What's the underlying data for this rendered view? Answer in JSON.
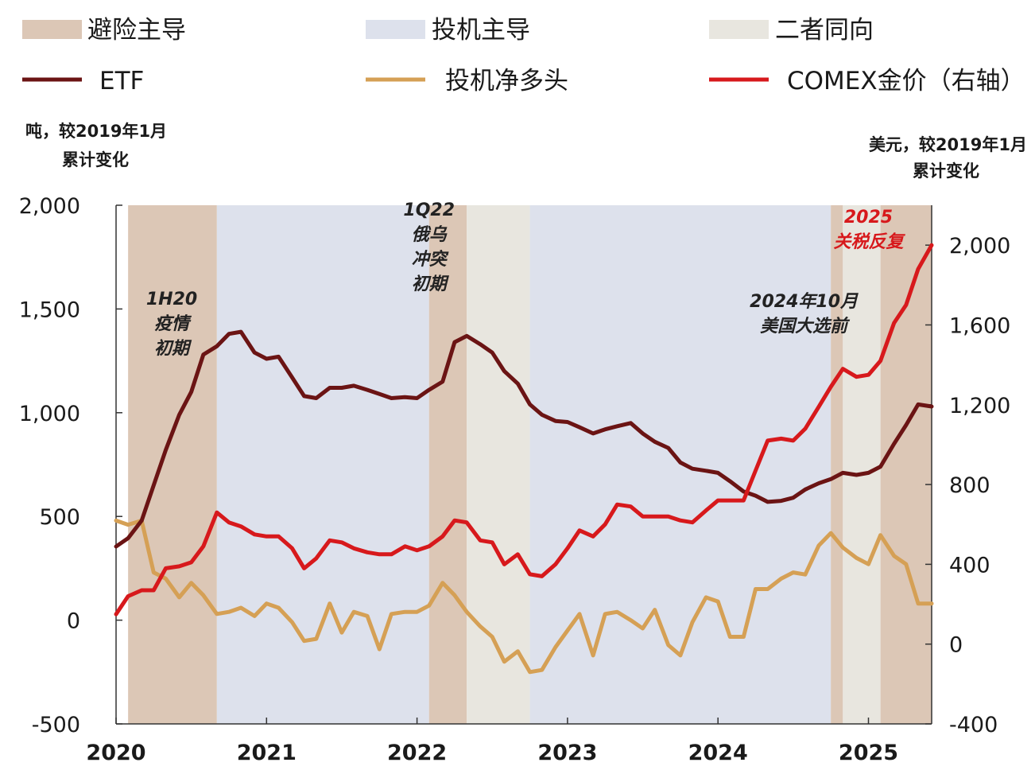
{
  "legend": {
    "regimes": [
      {
        "label": "避险主导",
        "color": "#dcc7b6"
      },
      {
        "label": "投机主导",
        "color": "#dde1ec"
      },
      {
        "label": "二者同向",
        "color": "#e8e6df"
      }
    ],
    "series": [
      {
        "label": "ETF",
        "color": "#6b1414"
      },
      {
        "label": "投机净多头",
        "color": "#d5a055"
      },
      {
        "label": "COMEX金价（右轴）",
        "color": "#d7191c"
      }
    ]
  },
  "left_unit": [
    "吨，较2019年1月",
    "累计变化"
  ],
  "right_unit": [
    "美元，较2019年1月",
    "累计变化"
  ],
  "annotations": [
    {
      "lines": [
        "1H20",
        "疫情",
        "初期"
      ],
      "x": 2020.37,
      "y": 1520,
      "axis": "left",
      "color": "dark"
    },
    {
      "lines": [
        "1Q22",
        "俄乌",
        "冲突",
        "初期"
      ],
      "x": 2022.08,
      "y": 1950,
      "axis": "left",
      "color": "dark"
    },
    {
      "lines": [
        "2024年10月",
        "美国大选前"
      ],
      "x": 2024.57,
      "y": 1510,
      "axis": "left",
      "color": "dark"
    },
    {
      "lines": [
        "2025",
        "关税反复"
      ],
      "x": 2025.0,
      "y": 1915,
      "axis": "left",
      "color": "red"
    }
  ],
  "chart_data": {
    "type": "line",
    "x_axis": {
      "min": 2020.0,
      "max": 2025.42,
      "ticks": [
        2020,
        2021,
        2022,
        2023,
        2024,
        2025
      ],
      "tick_labels": [
        "2020",
        "2021",
        "2022",
        "2023",
        "2024",
        "2025"
      ]
    },
    "y_left": {
      "min": -500,
      "max": 2000,
      "ticks": [
        -500,
        0,
        500,
        1000,
        1500,
        2000
      ],
      "tick_labels": [
        "-500",
        "0",
        "500",
        "1,000",
        "1,500",
        "2,000"
      ]
    },
    "y_right": {
      "min": -400,
      "max": 2200,
      "ticks": [
        -400,
        0,
        400,
        800,
        1200,
        1600,
        2000
      ],
      "tick_labels": [
        "-400",
        "0",
        "400",
        "800",
        "1,200",
        "1,600",
        "2,000"
      ]
    },
    "regimes": [
      {
        "type": "避险主导",
        "start": 2020.08,
        "end": 2020.67
      },
      {
        "type": "投机主导",
        "start": 2020.67,
        "end": 2022.08
      },
      {
        "type": "避险主导",
        "start": 2022.08,
        "end": 2022.33
      },
      {
        "type": "二者同向",
        "start": 2022.33,
        "end": 2022.75
      },
      {
        "type": "投机主导",
        "start": 2022.75,
        "end": 2024.75
      },
      {
        "type": "避险主导",
        "start": 2024.75,
        "end": 2024.83
      },
      {
        "type": "二者同向",
        "start": 2024.83,
        "end": 2025.08
      },
      {
        "type": "避险主导",
        "start": 2025.08,
        "end": 2025.42
      }
    ],
    "series": [
      {
        "name": "ETF",
        "axis": "left",
        "x": [
          2020.0,
          2020.08,
          2020.17,
          2020.25,
          2020.33,
          2020.42,
          2020.5,
          2020.58,
          2020.67,
          2020.75,
          2020.83,
          2020.92,
          2021.0,
          2021.08,
          2021.17,
          2021.25,
          2021.33,
          2021.42,
          2021.5,
          2021.58,
          2021.67,
          2021.75,
          2021.83,
          2021.92,
          2022.0,
          2022.08,
          2022.17,
          2022.25,
          2022.33,
          2022.42,
          2022.5,
          2022.58,
          2022.67,
          2022.75,
          2022.83,
          2022.92,
          2023.0,
          2023.08,
          2023.17,
          2023.25,
          2023.33,
          2023.42,
          2023.5,
          2023.58,
          2023.67,
          2023.75,
          2023.83,
          2023.92,
          2024.0,
          2024.08,
          2024.17,
          2024.25,
          2024.33,
          2024.42,
          2024.5,
          2024.58,
          2024.67,
          2024.75,
          2024.83,
          2024.92,
          2025.0,
          2025.08,
          2025.17,
          2025.25,
          2025.33,
          2025.42
        ],
        "y": [
          355,
          395,
          480,
          650,
          820,
          990,
          1100,
          1280,
          1320,
          1380,
          1390,
          1290,
          1260,
          1270,
          1170,
          1080,
          1070,
          1120,
          1120,
          1130,
          1110,
          1090,
          1070,
          1075,
          1070,
          1110,
          1150,
          1340,
          1370,
          1330,
          1290,
          1200,
          1140,
          1040,
          990,
          960,
          955,
          930,
          900,
          920,
          935,
          950,
          900,
          860,
          830,
          760,
          730,
          720,
          710,
          670,
          620,
          600,
          570,
          575,
          590,
          630,
          660,
          680,
          710,
          700,
          710,
          740,
          850,
          940,
          1040,
          1030
        ]
      },
      {
        "name": "投机净多头",
        "axis": "left",
        "x": [
          2020.0,
          2020.08,
          2020.17,
          2020.25,
          2020.33,
          2020.42,
          2020.5,
          2020.58,
          2020.67,
          2020.75,
          2020.83,
          2020.92,
          2021.0,
          2021.08,
          2021.17,
          2021.25,
          2021.33,
          2021.42,
          2021.5,
          2021.58,
          2021.67,
          2021.75,
          2021.83,
          2021.92,
          2022.0,
          2022.08,
          2022.17,
          2022.25,
          2022.33,
          2022.42,
          2022.5,
          2022.58,
          2022.67,
          2022.75,
          2022.83,
          2022.92,
          2023.0,
          2023.08,
          2023.17,
          2023.25,
          2023.33,
          2023.42,
          2023.5,
          2023.58,
          2023.67,
          2023.75,
          2023.83,
          2023.92,
          2024.0,
          2024.08,
          2024.17,
          2024.25,
          2024.33,
          2024.42,
          2024.5,
          2024.58,
          2024.67,
          2024.75,
          2024.83,
          2024.92,
          2025.0,
          2025.08,
          2025.17,
          2025.25,
          2025.33,
          2025.42
        ],
        "y": [
          480,
          460,
          480,
          230,
          200,
          110,
          180,
          120,
          30,
          40,
          60,
          20,
          80,
          60,
          -10,
          -100,
          -90,
          80,
          -60,
          40,
          20,
          -140,
          30,
          40,
          40,
          70,
          180,
          120,
          40,
          -30,
          -80,
          -200,
          -150,
          -250,
          -240,
          -130,
          -50,
          30,
          -170,
          30,
          40,
          0,
          -40,
          50,
          -120,
          -170,
          -10,
          110,
          90,
          -80,
          -80,
          150,
          150,
          200,
          230,
          220,
          360,
          420,
          350,
          300,
          270,
          410,
          310,
          270,
          80,
          80
        ]
      },
      {
        "name": "COMEX金价（右轴）",
        "axis": "right",
        "x": [
          2020.0,
          2020.08,
          2020.17,
          2020.25,
          2020.33,
          2020.42,
          2020.5,
          2020.58,
          2020.67,
          2020.75,
          2020.83,
          2020.92,
          2021.0,
          2021.08,
          2021.17,
          2021.25,
          2021.33,
          2021.42,
          2021.5,
          2021.58,
          2021.67,
          2021.75,
          2021.83,
          2021.92,
          2022.0,
          2022.08,
          2022.17,
          2022.25,
          2022.33,
          2022.42,
          2022.5,
          2022.58,
          2022.67,
          2022.75,
          2022.83,
          2022.92,
          2023.0,
          2023.08,
          2023.17,
          2023.25,
          2023.33,
          2023.42,
          2023.5,
          2023.58,
          2023.67,
          2023.75,
          2023.83,
          2023.92,
          2024.0,
          2024.08,
          2024.17,
          2024.25,
          2024.33,
          2024.42,
          2024.5,
          2024.58,
          2024.67,
          2024.75,
          2024.83,
          2024.92,
          2025.0,
          2025.08,
          2025.17,
          2025.25,
          2025.33,
          2025.42
        ],
        "y": [
          150,
          240,
          270,
          270,
          380,
          390,
          410,
          490,
          660,
          610,
          590,
          550,
          540,
          540,
          480,
          380,
          430,
          520,
          510,
          480,
          460,
          450,
          450,
          490,
          470,
          490,
          540,
          620,
          610,
          520,
          510,
          400,
          450,
          350,
          340,
          400,
          480,
          570,
          540,
          600,
          700,
          690,
          640,
          640,
          640,
          620,
          610,
          670,
          720,
          720,
          720,
          870,
          1020,
          1030,
          1020,
          1080,
          1190,
          1290,
          1380,
          1340,
          1350,
          1420,
          1610,
          1700,
          1880,
          2000
        ]
      }
    ]
  }
}
